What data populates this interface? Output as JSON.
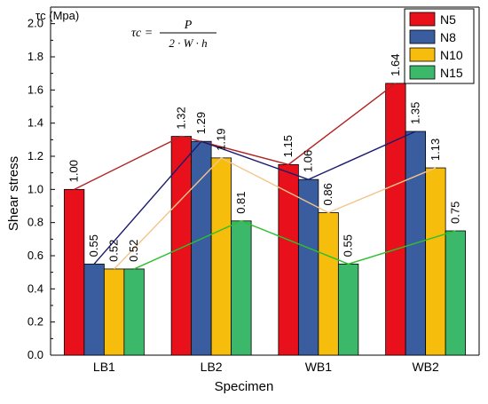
{
  "chart_data": {
    "type": "bar",
    "xlabel": "Specimen",
    "ylabel": "Shear stress",
    "y_axis_title": "τc (Mpa)",
    "ylim": [
      0,
      2.1
    ],
    "yticks": [
      "0.0",
      "0.2",
      "0.4",
      "0.6",
      "0.8",
      "1.0",
      "1.2",
      "1.4",
      "1.6",
      "1.8",
      "2.0"
    ],
    "categories": [
      "LB1",
      "LB2",
      "WB1",
      "WB2"
    ],
    "series": [
      {
        "name": "N5",
        "values": [
          1.0,
          1.32,
          1.15,
          1.64
        ],
        "labels": [
          "1.00",
          "1.32",
          "1.15",
          "1.64"
        ]
      },
      {
        "name": "N8",
        "values": [
          0.55,
          1.29,
          1.06,
          1.35
        ],
        "labels": [
          "0.55",
          "1.29",
          "1.06",
          "1.35"
        ]
      },
      {
        "name": "N10",
        "values": [
          0.52,
          1.19,
          0.86,
          1.13
        ],
        "labels": [
          "0.52",
          "1.19",
          "0.86",
          "1.13"
        ]
      },
      {
        "name": "N15",
        "values": [
          0.52,
          0.81,
          0.55,
          0.75
        ],
        "labels": [
          "0.52",
          "0.81",
          "0.55",
          "0.75"
        ]
      }
    ],
    "legend_position": "top-right",
    "grid": false,
    "connecting_lines": true
  },
  "formula": {
    "lhs": "τc =",
    "numerator": "P",
    "denominator": "2 · W · h"
  },
  "colors": {
    "bars": [
      "#e8101b",
      "#3a5da0",
      "#f7bd0c",
      "#3cb86a"
    ],
    "lines": [
      "#b22222",
      "#1a1a6e",
      "#f3c48a",
      "#2ec02e"
    ]
  }
}
